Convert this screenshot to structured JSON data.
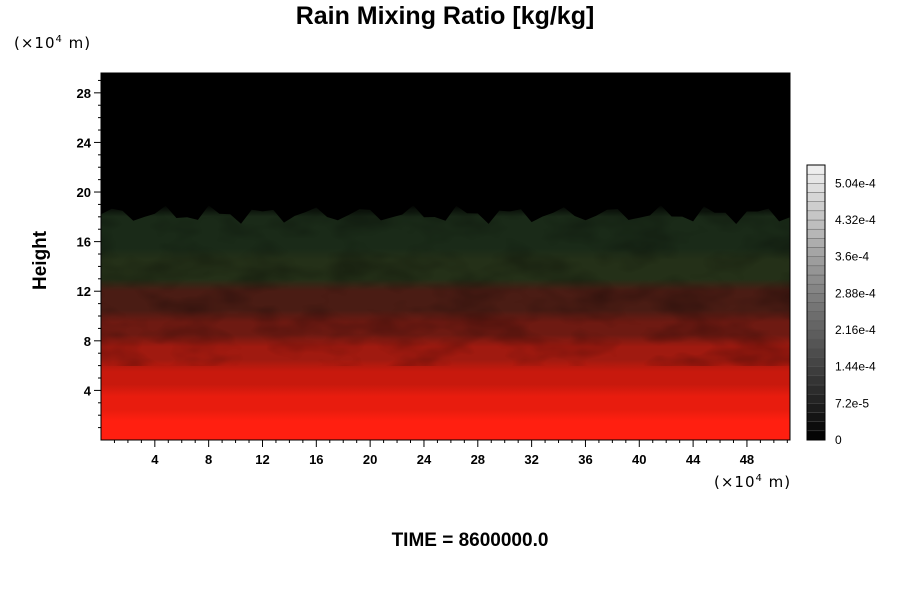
{
  "chart_data": {
    "type": "heatmap",
    "title": "Rain Mixing Ratio [kg/kg]",
    "ylabel": "Height",
    "x_unit_label": "(×10",
    "x_unit_exp": "4",
    "x_unit_suffix": " m)",
    "y_unit_label": "(×10",
    "y_unit_exp": "4",
    "y_unit_suffix": " m)",
    "x_ticks": [
      4,
      8,
      12,
      16,
      20,
      24,
      28,
      32,
      36,
      40,
      44,
      48
    ],
    "y_ticks": [
      4,
      8,
      12,
      16,
      20,
      24,
      28
    ],
    "xlim": [
      0,
      51.2
    ],
    "ylim": [
      0,
      29.6
    ],
    "colorbar": {
      "labels": [
        "0",
        "7.2e-5",
        "1.44e-4",
        "2.16e-4",
        "2.88e-4",
        "3.6e-4",
        "4.32e-4",
        "5.04e-4"
      ],
      "values": [
        0,
        7.2e-05,
        0.000144,
        0.000216,
        0.000288,
        0.00036,
        0.000432,
        0.000504
      ],
      "range": [
        0,
        0.00054
      ]
    },
    "color_bands": [
      {
        "y0": 0,
        "y1": 2,
        "color": "#ff1f10"
      },
      {
        "y0": 2,
        "y1": 4,
        "color": "#e81c0e"
      },
      {
        "y0": 4,
        "y1": 6,
        "color": "#c8190d"
      },
      {
        "y0": 6,
        "y1": 8,
        "color": "#a01a10"
      },
      {
        "y0": 8,
        "y1": 10,
        "color": "#6e1a12"
      },
      {
        "y0": 10,
        "y1": 12.5,
        "color": "#4a1c14"
      },
      {
        "y0": 12.5,
        "y1": 15,
        "color": "#243018"
      },
      {
        "y0": 15,
        "y1": 18.5,
        "color": "#1a2a18"
      },
      {
        "y0": 18.5,
        "y1": 29.6,
        "color": "#000000"
      }
    ]
  },
  "time_label": "TIME = 8600000.0"
}
